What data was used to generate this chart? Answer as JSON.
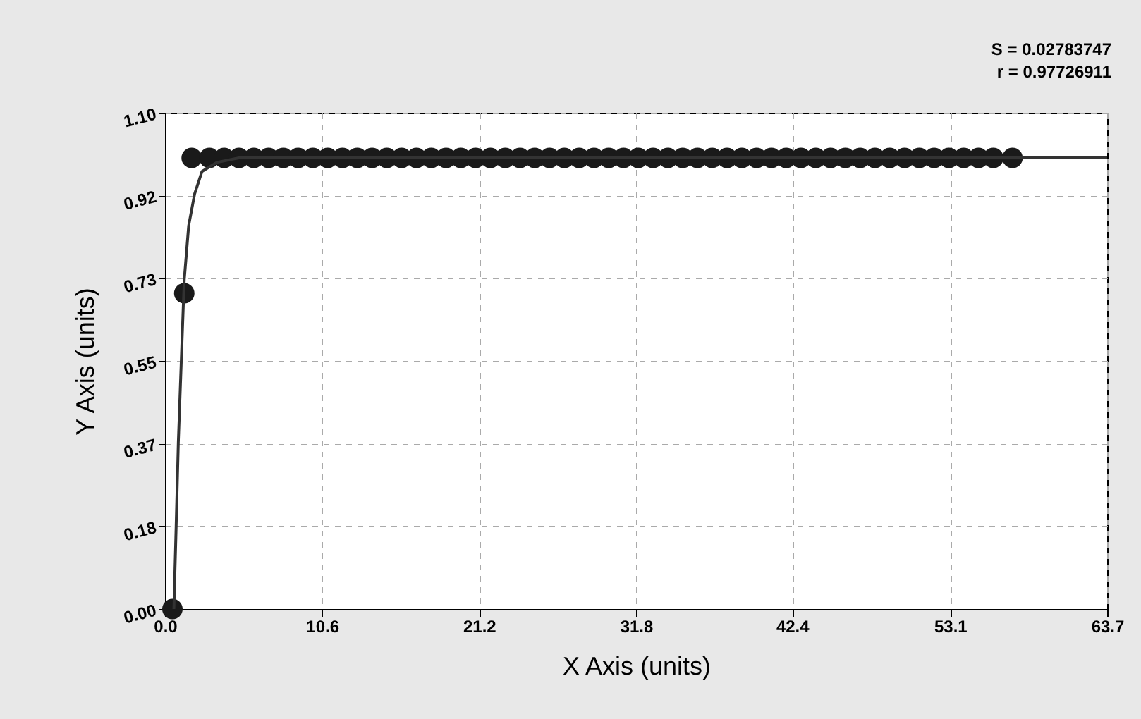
{
  "chart_data": {
    "type": "scatter",
    "xlabel": "X Axis (units)",
    "ylabel": "Y Axis (units)",
    "annotations": [
      "S = 0.02783747",
      "r = 0.97726911"
    ],
    "xlim": [
      0,
      63.7
    ],
    "xticks": [
      {
        "value": 0,
        "label": "0.0"
      },
      {
        "value": 10.617,
        "label": "10.6"
      },
      {
        "value": 21.233,
        "label": "21.2"
      },
      {
        "value": 31.85,
        "label": "31.8"
      },
      {
        "value": 42.4,
        "label": "42.4"
      },
      {
        "value": 53.083,
        "label": "53.1"
      },
      {
        "value": 63.7,
        "label": "63.7"
      }
    ],
    "ylim": [
      0,
      1.1
    ],
    "yticks": [
      {
        "value": 0,
        "label": "0.00"
      },
      {
        "value": 0.1833,
        "label": "0.18"
      },
      {
        "value": 0.3667,
        "label": "0.37"
      },
      {
        "value": 0.55,
        "label": "0.55"
      },
      {
        "value": 0.7333,
        "label": "0.73"
      },
      {
        "value": 0.9167,
        "label": "0.92"
      },
      {
        "value": 1.1,
        "label": "1.10"
      }
    ],
    "grid": true,
    "series": [
      {
        "color": "#1a1a1a",
        "marker": "circle",
        "x": [
          0.5,
          1.3,
          1.8,
          3,
          4,
          5,
          6,
          7,
          8,
          9,
          10,
          11,
          12,
          13,
          14,
          15,
          16,
          17,
          18,
          19,
          20,
          21,
          22,
          23,
          24,
          25,
          26,
          27,
          28,
          29,
          30,
          31,
          32,
          33,
          34,
          35,
          36,
          37,
          38,
          39,
          40,
          41,
          42,
          43,
          44,
          45,
          46,
          47,
          48,
          49,
          50,
          51,
          52,
          53,
          54,
          55,
          56,
          57.3
        ],
        "values": [
          0,
          0.7,
          1,
          1,
          1,
          1,
          1,
          1,
          1,
          1,
          1,
          1,
          1,
          1,
          1,
          1,
          1,
          1,
          1,
          1,
          1,
          1,
          1,
          1,
          1,
          1,
          1,
          1,
          1,
          1,
          1,
          1,
          1,
          1,
          1,
          1,
          1,
          1,
          1,
          1,
          1,
          1,
          1,
          1,
          1,
          1,
          1,
          1,
          1,
          1,
          1,
          1,
          1,
          1,
          1,
          1,
          1,
          1
        ]
      },
      {
        "type": "line",
        "color": "#333333",
        "line_style": "solid",
        "marker": "none",
        "x": [
          0.6,
          0.75,
          0.9,
          1.1,
          1.3,
          1.6,
          2.0,
          2.5,
          3.5,
          5,
          63.7
        ],
        "values": [
          0,
          0.18,
          0.37,
          0.55,
          0.73,
          0.85,
          0.92,
          0.97,
          0.99,
          1.0,
          1.0
        ]
      }
    ]
  }
}
